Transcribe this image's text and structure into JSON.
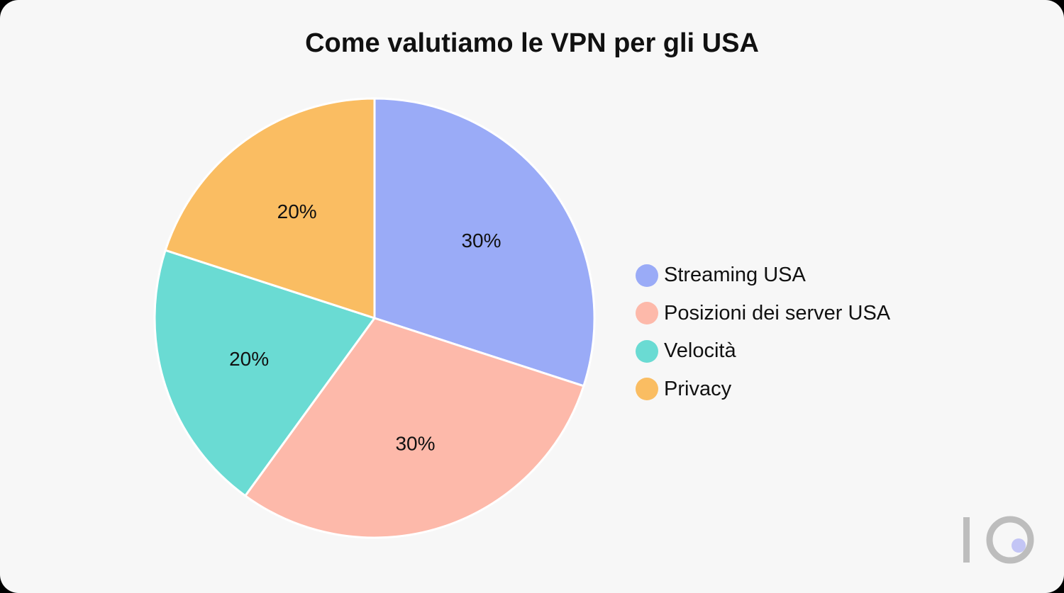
{
  "chart_data": {
    "type": "pie",
    "title": "Come valutiamo le VPN per gli USA",
    "categories": [
      "Streaming USA",
      "Posizioni dei server USA",
      "Velocità",
      "Privacy"
    ],
    "values": [
      30,
      30,
      20,
      20
    ],
    "labels": [
      "30%",
      "30%",
      "20%",
      "20%"
    ],
    "colors": [
      "#9aabf7",
      "#fdb9aa",
      "#6adbd3",
      "#fabd62"
    ],
    "legend": "right"
  },
  "logo": {
    "icon": "ten-logo-icon",
    "ring_color": "#bdbdbd",
    "dot_color": "#c3c5f5"
  }
}
